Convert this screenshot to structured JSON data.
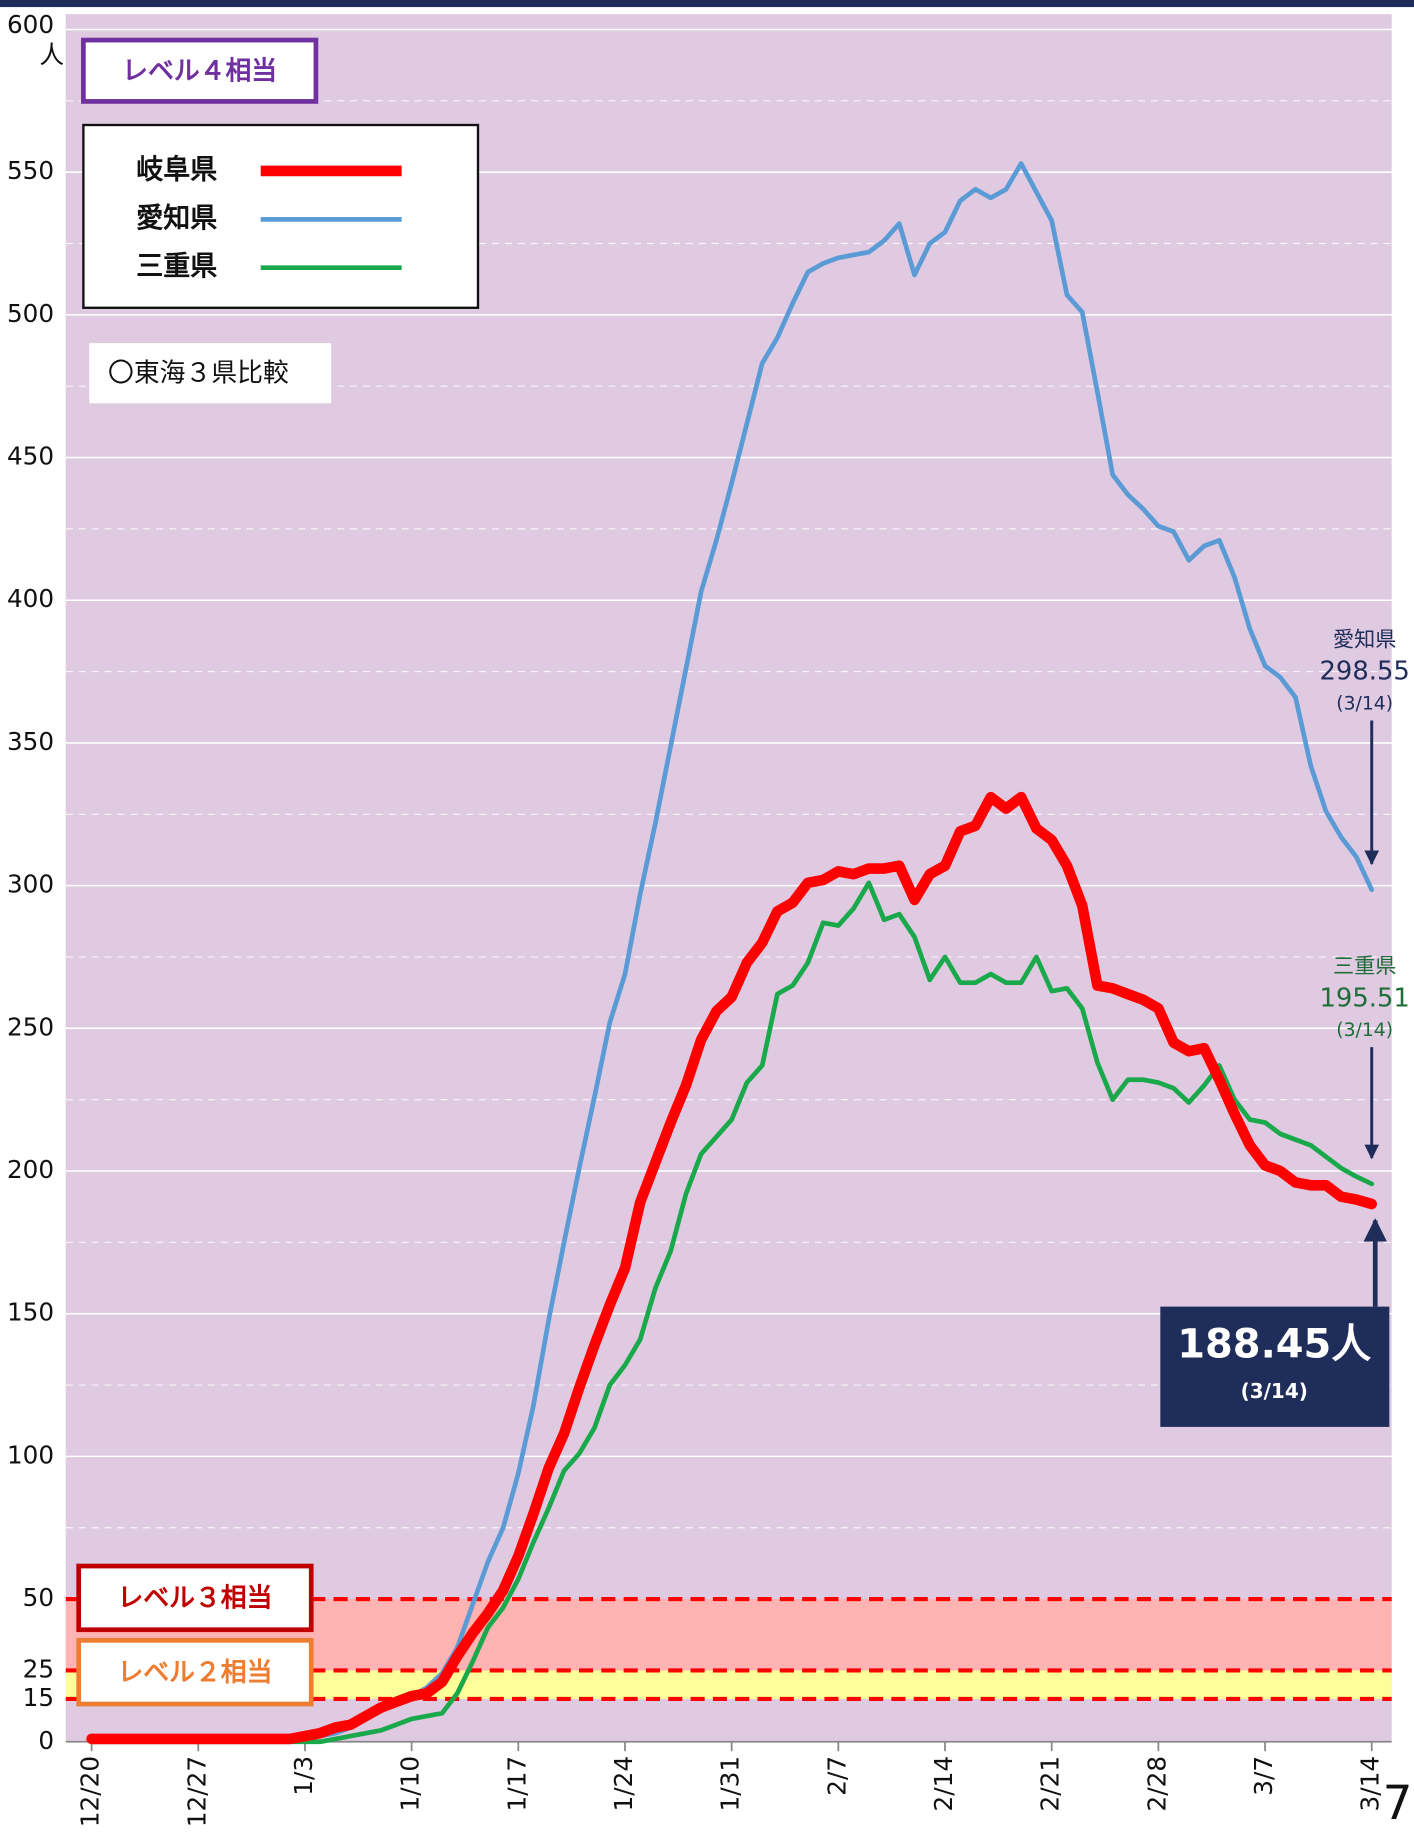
{
  "chart_data": {
    "type": "line",
    "unit": "人",
    "categories": [
      "12/20",
      null,
      null,
      null,
      null,
      null,
      null,
      "12/27",
      null,
      null,
      null,
      null,
      null,
      null,
      "1/3",
      null,
      null,
      null,
      null,
      null,
      null,
      "1/10",
      null,
      null,
      null,
      null,
      null,
      null,
      "1/17",
      null,
      null,
      null,
      null,
      null,
      null,
      "1/24",
      null,
      null,
      null,
      null,
      null,
      null,
      "1/31",
      null,
      null,
      null,
      null,
      null,
      null,
      "2/7",
      null,
      null,
      null,
      null,
      null,
      null,
      "2/14",
      null,
      null,
      null,
      null,
      null,
      null,
      "2/21",
      null,
      null,
      null,
      null,
      null,
      null,
      "2/28",
      null,
      null,
      null,
      null,
      null,
      null,
      "3/7",
      null,
      null,
      null,
      null,
      null,
      null,
      "3/14"
    ],
    "series": [
      {
        "name": "岐阜県",
        "color": "#ff0000",
        "width": 9,
        "values": [
          1,
          1,
          1,
          1,
          1,
          1,
          1,
          1,
          1,
          1,
          1,
          1,
          1,
          1,
          2,
          3,
          5,
          6,
          9,
          12,
          14,
          16,
          17,
          21,
          30,
          38,
          45,
          53,
          65,
          80,
          96,
          108,
          124,
          139,
          153,
          166,
          189,
          203,
          217,
          230,
          246,
          256,
          261,
          273,
          280,
          291,
          294,
          301,
          302,
          305,
          304,
          306,
          306,
          307,
          295,
          304,
          307,
          319,
          321,
          331,
          327,
          331,
          320,
          316,
          307,
          293,
          265,
          264,
          262,
          260,
          257,
          245,
          242,
          243,
          232,
          220,
          209,
          202,
          200,
          196,
          195,
          195,
          191,
          190,
          188.45
        ]
      },
      {
        "name": "愛知県",
        "color": "#5b9bd5",
        "width": 4,
        "values": [
          1,
          1,
          1,
          1,
          1,
          1,
          1,
          1,
          1,
          1,
          1,
          1,
          1,
          1,
          1,
          2,
          3,
          5,
          8,
          11,
          14,
          16,
          19,
          24,
          33,
          48,
          63,
          75,
          94,
          118,
          148,
          175,
          201,
          226,
          252,
          269,
          297,
          322,
          349,
          376,
          403,
          421,
          441,
          462,
          483,
          492,
          504,
          515,
          518,
          520,
          521,
          522,
          526,
          532,
          514,
          525,
          529,
          540,
          544,
          541,
          544,
          553,
          543,
          533,
          507,
          501,
          473,
          444,
          437,
          432,
          426,
          424,
          414,
          419,
          421,
          408,
          390,
          377,
          373,
          366,
          342,
          326,
          317,
          310,
          298.55
        ]
      },
      {
        "name": "三重県",
        "color": "#19a84a",
        "width": 4,
        "values": [
          0,
          0,
          0,
          0,
          0,
          0,
          0,
          0,
          0,
          0,
          0,
          0,
          0,
          0,
          0,
          0,
          1,
          2,
          3,
          4,
          6,
          8,
          9,
          10,
          17,
          28,
          40,
          47,
          57,
          70,
          82,
          95,
          101,
          110,
          125,
          132,
          141,
          159,
          172,
          192,
          206,
          212,
          218,
          231,
          237,
          262,
          265,
          273,
          287,
          286,
          292,
          301,
          288,
          290,
          282,
          267,
          275,
          266,
          266,
          269,
          266,
          266,
          275,
          263,
          264,
          257,
          238,
          225,
          232,
          232,
          231,
          229,
          224,
          230,
          237,
          225,
          218,
          217,
          213,
          211,
          209,
          205,
          201,
          198,
          195.51
        ]
      }
    ],
    "ylim": [
      0,
      600
    ],
    "yticks": [
      0,
      15,
      25,
      50,
      100,
      150,
      200,
      250,
      300,
      350,
      400,
      450,
      500,
      550,
      600
    ],
    "minor_grid": [
      75,
      125,
      175,
      225,
      275,
      325,
      375,
      425,
      475,
      525,
      575
    ],
    "grid": true,
    "background": "#dfcae1",
    "level_lines": [
      15,
      25,
      50
    ],
    "bands": [
      {
        "from": 15,
        "to": 25,
        "color": "#ffff99"
      },
      {
        "from": 25,
        "to": 50,
        "color": "#ffb3b3"
      }
    ],
    "levels": [
      {
        "label": "レベル４相当",
        "color": "#7030a0"
      },
      {
        "label": "レベル３相当",
        "color": "#c00000"
      },
      {
        "label": "レベル２相当",
        "color": "#ed7d31"
      }
    ],
    "subtitle": "〇東海３県比較",
    "annotations": [
      {
        "name": "愛知県",
        "value": 298.55,
        "date": "(3/14)",
        "series": 1
      },
      {
        "name": "三重県",
        "value": 195.51,
        "date": "(3/14)",
        "series": 2
      },
      {
        "value": 188.45,
        "value_label": "188.45人",
        "date": "(3/14)",
        "series": 0
      }
    ],
    "page_number": "7"
  }
}
